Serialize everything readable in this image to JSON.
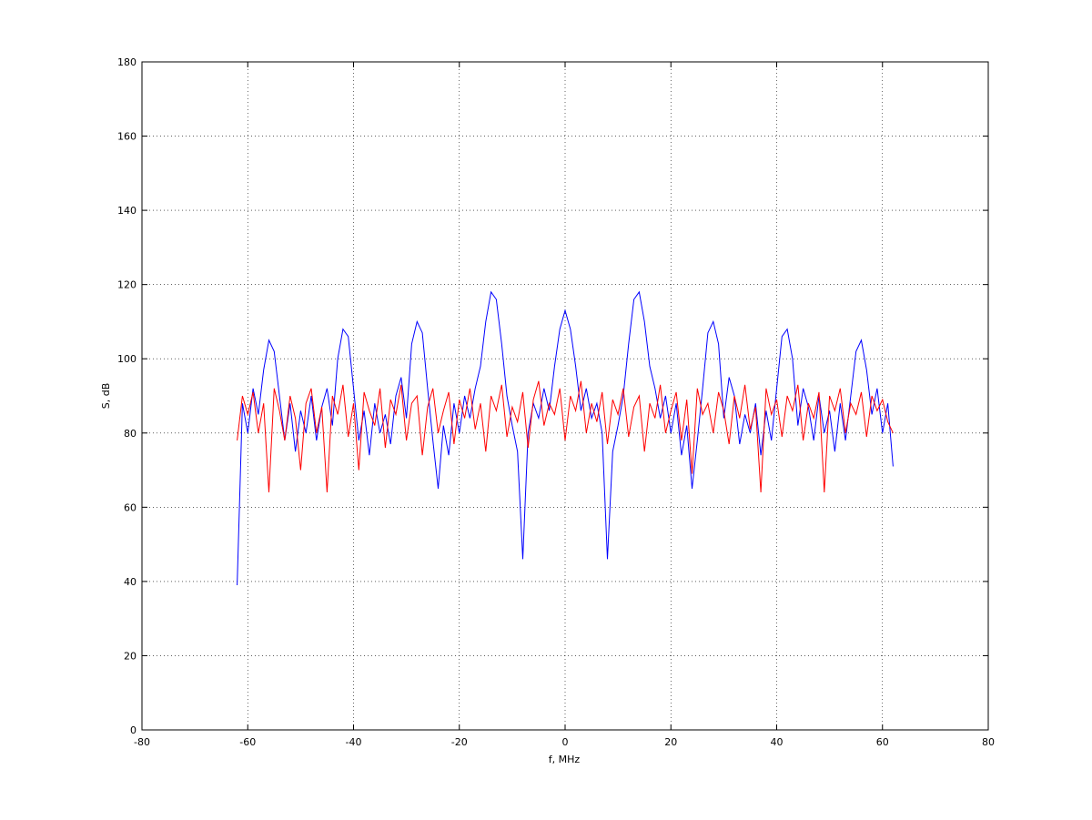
{
  "chart_data": {
    "type": "line",
    "x_label": "f, MHz",
    "y_label": "S, dB",
    "x": [
      -62,
      -61,
      -60,
      -59,
      -58,
      -57,
      -56,
      -55,
      -54,
      -53,
      -52,
      -51,
      -50,
      -49,
      -48,
      -47,
      -46,
      -45,
      -44,
      -43,
      -42,
      -41,
      -40,
      -39,
      -38,
      -37,
      -36,
      -35,
      -34,
      -33,
      -32,
      -31,
      -30,
      -29,
      -28,
      -27,
      -26,
      -25,
      -24,
      -23,
      -22,
      -21,
      -20,
      -19,
      -18,
      -17,
      -16,
      -15,
      -14,
      -13,
      -12,
      -11,
      -10,
      -9,
      -8,
      -7,
      -6,
      -5,
      -4,
      -3,
      -2,
      -1,
      0,
      1,
      2,
      3,
      4,
      5,
      6,
      7,
      8,
      9,
      10,
      11,
      12,
      13,
      14,
      15,
      16,
      17,
      18,
      19,
      20,
      21,
      22,
      23,
      24,
      25,
      26,
      27,
      28,
      29,
      30,
      31,
      32,
      33,
      34,
      35,
      36,
      37,
      38,
      39,
      40,
      41,
      42,
      43,
      44,
      45,
      46,
      47,
      48,
      49,
      50,
      51,
      52,
      53,
      54,
      55,
      56,
      57,
      58,
      59,
      60,
      61,
      62
    ],
    "series": [
      {
        "color": "#0000ff",
        "values": [
          39,
          88,
          80,
          92,
          85,
          97,
          105,
          102,
          90,
          78,
          88,
          75,
          86,
          80,
          90,
          78,
          87,
          92,
          82,
          100,
          108,
          106,
          92,
          78,
          86,
          74,
          88,
          80,
          85,
          77,
          90,
          95,
          84,
          104,
          110,
          107,
          92,
          78,
          65,
          82,
          74,
          88,
          80,
          90,
          84,
          92,
          98,
          110,
          118,
          116,
          104,
          90,
          82,
          75,
          46,
          80,
          88,
          84,
          92,
          86,
          98,
          108,
          113,
          108,
          98,
          86,
          92,
          84,
          88,
          80,
          46,
          75,
          82,
          90,
          104,
          116,
          118,
          110,
          98,
          92,
          84,
          90,
          80,
          88,
          74,
          82,
          65,
          78,
          92,
          107,
          110,
          104,
          84,
          95,
          90,
          77,
          85,
          80,
          88,
          74,
          86,
          78,
          92,
          106,
          108,
          100,
          82,
          92,
          87,
          78,
          90,
          80,
          86,
          75,
          88,
          78,
          90,
          102,
          105,
          97,
          85,
          92,
          80,
          88,
          71
        ]
      },
      {
        "color": "#ff0000",
        "values": [
          78,
          90,
          85,
          91,
          80,
          88,
          64,
          92,
          86,
          78,
          90,
          84,
          70,
          88,
          92,
          80,
          87,
          64,
          90,
          85,
          93,
          79,
          88,
          70,
          91,
          86,
          82,
          92,
          76,
          89,
          85,
          93,
          78,
          88,
          90,
          74,
          87,
          92,
          80,
          86,
          91,
          77,
          89,
          84,
          92,
          81,
          88,
          75,
          90,
          86,
          93,
          79,
          87,
          83,
          91,
          76,
          89,
          94,
          82,
          88,
          85,
          92,
          78,
          90,
          86,
          94,
          80,
          88,
          83,
          91,
          77,
          89,
          85,
          92,
          79,
          87,
          90,
          75,
          88,
          84,
          93,
          80,
          86,
          91,
          78,
          89,
          69,
          92,
          85,
          88,
          80,
          91,
          86,
          77,
          90,
          84,
          93,
          81,
          87,
          64,
          92,
          85,
          89,
          79,
          90,
          86,
          93,
          78,
          88,
          84,
          91,
          64,
          90,
          86,
          92,
          80,
          88,
          85,
          91,
          79,
          90,
          86,
          89,
          83,
          80
        ]
      }
    ],
    "xlim": [
      -80,
      80
    ],
    "xticks": [
      -80,
      -60,
      -40,
      -20,
      0,
      20,
      40,
      60,
      80
    ],
    "ylim": [
      0,
      180
    ],
    "yticks": [
      0,
      20,
      40,
      60,
      80,
      100,
      120,
      140,
      160,
      180
    ],
    "grid": true
  }
}
